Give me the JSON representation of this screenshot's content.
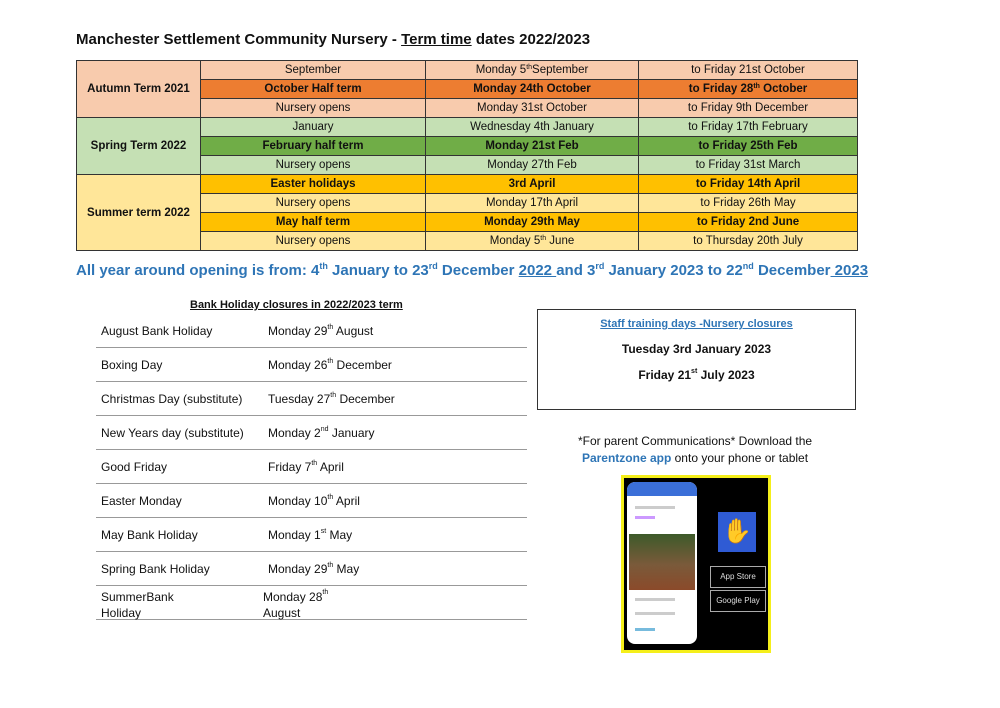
{
  "title": {
    "main": "Manchester Settlement Community Nursery - ",
    "underlined": "Term time",
    "rest": " dates 2022/2023"
  },
  "terms": [
    {
      "name": "Autumn Term 2021",
      "bg": "#f8cbad",
      "rows": [
        {
          "bold": false,
          "bg": "#f8cbad",
          "cells": [
            "September",
            {
              "t": "Monday 5",
              "sup": "th",
              "after": "September"
            },
            "to Friday 21st October"
          ]
        },
        {
          "bold": true,
          "bg": "#ed7d31",
          "cells": [
            "October Half term",
            "Monday 24th October",
            {
              "t": "to Friday 28",
              "sup": "th",
              "after": " October"
            }
          ]
        },
        {
          "bold": false,
          "bg": "#f8cbad",
          "cells": [
            "Nursery opens",
            "Monday 31st October",
            "to Friday 9th December"
          ]
        }
      ]
    },
    {
      "name": "Spring Term 2022",
      "bg": "#c5e0b4",
      "rows": [
        {
          "bold": false,
          "bg": "#c5e0b4",
          "cells": [
            "January",
            "Wednesday 4th January",
            "to Friday 17th February"
          ]
        },
        {
          "bold": true,
          "bg": "#70ad47",
          "cells": [
            "February half term",
            "Monday 21st Feb",
            "to Friday 25th Feb"
          ]
        },
        {
          "bold": false,
          "bg": "#c5e0b4",
          "cells": [
            "Nursery opens",
            "Monday 27th Feb",
            "to Friday 31st March"
          ]
        }
      ]
    },
    {
      "name": "Summer term 2022",
      "bg": "#ffe699",
      "rows": [
        {
          "bold": true,
          "bg": "#ffc000",
          "cells": [
            "Easter holidays",
            "3rd April",
            "to Friday 14th April"
          ]
        },
        {
          "bold": false,
          "bg": "#ffe699",
          "cells": [
            "Nursery opens",
            "Monday 17th April",
            "to Friday 26th May"
          ]
        },
        {
          "bold": true,
          "bg": "#ffc000",
          "cells": [
            "May half term",
            "Monday 29th May",
            "to Friday 2nd June"
          ]
        },
        {
          "bold": false,
          "bg": "#ffe699",
          "cells": [
            "Nursery opens",
            {
              "t": "Monday 5",
              "sup": "th",
              "after": " June"
            },
            "to Thursday 20th July"
          ]
        }
      ]
    }
  ],
  "year_opening": {
    "lead": "All year around opening is from:   4",
    "s1": "th",
    "p2": " January to 23",
    "s2": "rd",
    "p3": " December ",
    "u1": "2022 ",
    "p4": " and 3",
    "s3": "rd",
    "p5": " January 2023 to 22",
    "s4": "nd",
    "p6": " December",
    "u2": " 2023"
  },
  "bank_holidays": {
    "heading": "Bank Holiday closures in 2022/2023 term",
    "items": [
      {
        "name": "August Bank Holiday",
        "date": {
          "t": "Monday 29",
          "sup": "th",
          "after": " August"
        }
      },
      {
        "name": "Boxing Day",
        "date": {
          "t": "Monday 26",
          "sup": "th",
          "after": " December"
        }
      },
      {
        "name": "Christmas Day (substitute)",
        "date": {
          "t": "Tuesday 27",
          "sup": "th",
          "after": " December"
        }
      },
      {
        "name": "New Years day (substitute)",
        "date": {
          "t": "Monday 2",
          "sup": "nd",
          "after": " January"
        }
      },
      {
        "name": "Good Friday",
        "date": {
          "t": "Friday 7",
          "sup": "th",
          "after": " April"
        }
      },
      {
        "name": "Easter Monday",
        "date": {
          "t": "Monday 10",
          "sup": "th",
          "after": " April"
        }
      },
      {
        "name": "May Bank Holiday",
        "date": {
          "t": "Monday 1",
          "sup": "st",
          "after": " May"
        }
      },
      {
        "name": "Spring Bank Holiday",
        "date": {
          "t": "Monday 29",
          "sup": "th",
          "after": " May"
        }
      },
      {
        "name": " SummerBank Holiday",
        "date": {
          "t": "Monday 28",
          "sup": "th",
          "after": " August"
        }
      }
    ]
  },
  "staff_training": {
    "heading": "Staff training days -Nursery closures",
    "day1": "Tuesday  3rd January 2023",
    "day2_pre": "Friday 21",
    "day2_sup": "st",
    "day2_post": " July 2023"
  },
  "parent": {
    "line1": "*For parent Communications* Download the",
    "app": "Parentzone app",
    "line2": " onto your phone or tablet"
  },
  "app_image": {
    "app_store": "App Store",
    "google_play": "Google Play"
  }
}
